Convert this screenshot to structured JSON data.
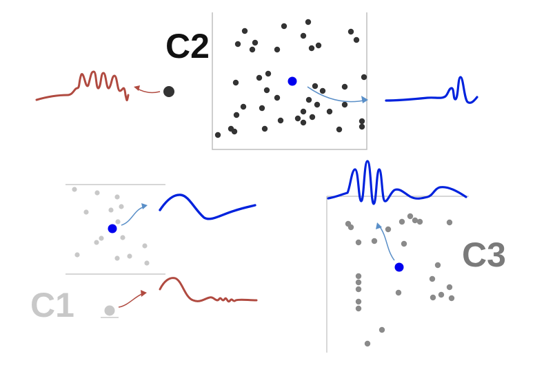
{
  "colors": {
    "background": "#ffffff",
    "c1_label": "#c8c8c8",
    "c2_label": "#111111",
    "c3_label": "#7a7a7a",
    "dense_particle": "#333333",
    "light_particle": "#c8c8c8",
    "mid_particle": "#8a8a8a",
    "tagged_particle": "#0000ee",
    "trajectory_wave": "#0022dd",
    "reference_wave": "#b04a40",
    "trajectory_arrow": "#5a8fc8",
    "reference_arrow": "#b04a40",
    "frame_line": "#bdbdbd"
  },
  "panels": {
    "c1": {
      "label": "C1"
    },
    "c2": {
      "label": "C2"
    },
    "c3": {
      "label": "C3"
    }
  }
}
